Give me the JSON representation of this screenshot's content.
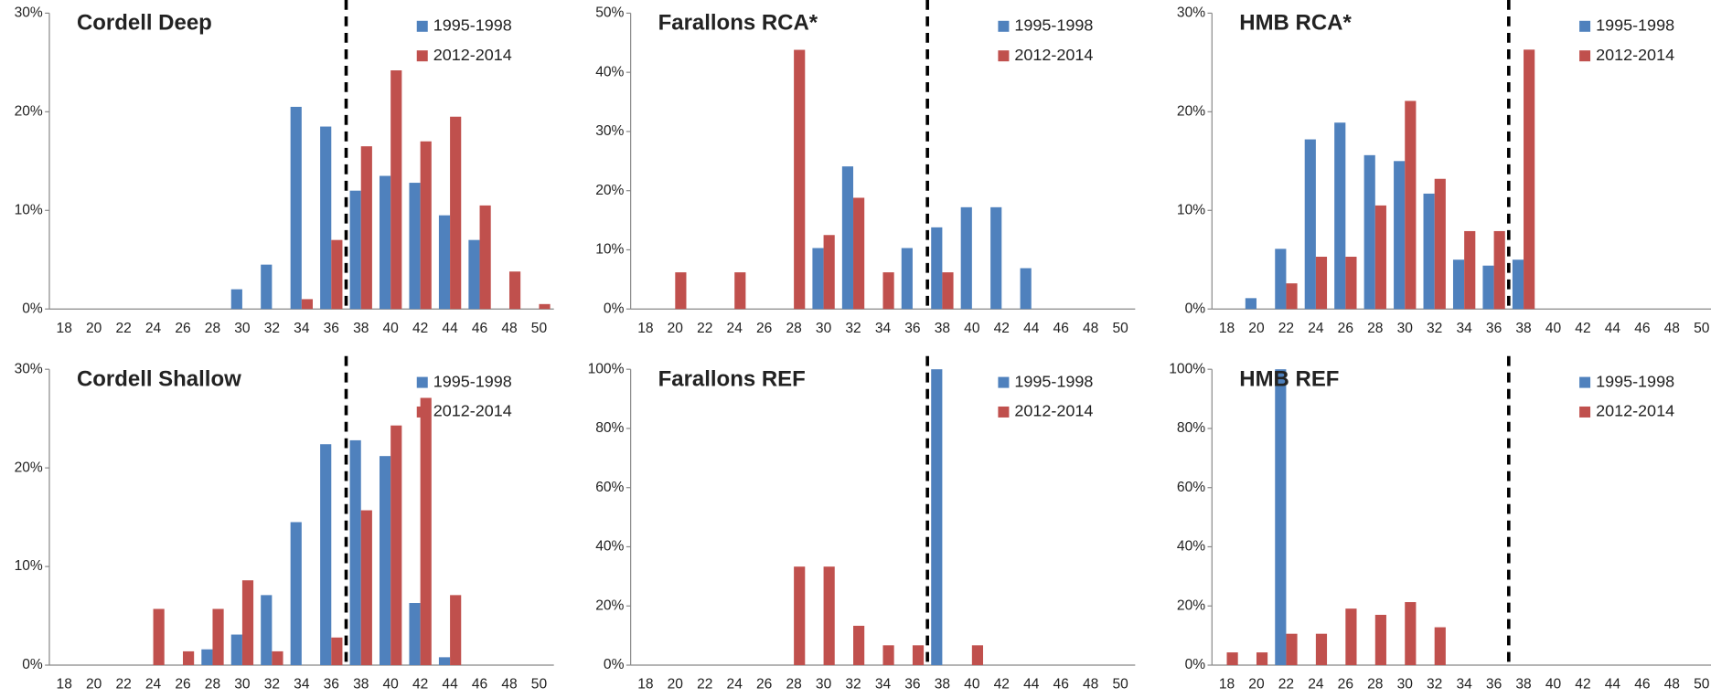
{
  "chart_data": [
    {
      "type": "bar",
      "title": "Cordell Deep",
      "categories": [
        "18",
        "20",
        "22",
        "24",
        "26",
        "28",
        "30",
        "32",
        "34",
        "36",
        "38",
        "40",
        "42",
        "44",
        "46",
        "48",
        "50"
      ],
      "series": [
        {
          "name": "1995-1998",
          "color": "#4f81bd",
          "values": [
            0,
            0,
            0,
            0,
            0,
            0,
            2,
            4.5,
            20.5,
            18.5,
            12,
            13.5,
            12.8,
            9.5,
            7,
            0,
            0
          ]
        },
        {
          "name": "2012-2014",
          "color": "#c0504d",
          "values": [
            0,
            0,
            0,
            0,
            0,
            0,
            0,
            0,
            1,
            7,
            16.5,
            24.2,
            17,
            19.5,
            10.5,
            3.8,
            0.5
          ]
        }
      ],
      "ylim": [
        0,
        30
      ],
      "yticks": [
        {
          "value": 0,
          "label": "0%"
        },
        {
          "value": 10,
          "label": "10%"
        },
        {
          "value": 20,
          "label": "20%"
        },
        {
          "value": 30,
          "label": "30%"
        }
      ],
      "reference_x": 37
    },
    {
      "type": "bar",
      "title": "Farallons RCA*",
      "categories": [
        "18",
        "20",
        "22",
        "24",
        "26",
        "28",
        "30",
        "32",
        "34",
        "36",
        "38",
        "40",
        "42",
        "44",
        "46",
        "48",
        "50"
      ],
      "series": [
        {
          "name": "1995-1998",
          "color": "#4f81bd",
          "values": [
            0,
            0,
            0,
            0,
            0,
            0,
            10.3,
            24.1,
            0,
            10.3,
            13.8,
            17.2,
            17.2,
            6.9,
            0,
            0,
            0
          ]
        },
        {
          "name": "2012-2014",
          "color": "#c0504d",
          "values": [
            0,
            6.2,
            0,
            6.2,
            0,
            43.8,
            12.5,
            18.8,
            6.2,
            0,
            6.2,
            0,
            0,
            0,
            0,
            0,
            0
          ]
        }
      ],
      "ylim": [
        0,
        50
      ],
      "yticks": [
        {
          "value": 0,
          "label": "0%"
        },
        {
          "value": 10,
          "label": "10%"
        },
        {
          "value": 20,
          "label": "20%"
        },
        {
          "value": 30,
          "label": "30%"
        },
        {
          "value": 40,
          "label": "40%"
        },
        {
          "value": 50,
          "label": "50%"
        }
      ],
      "reference_x": 37
    },
    {
      "type": "bar",
      "title": "HMB RCA*",
      "categories": [
        "18",
        "20",
        "22",
        "24",
        "26",
        "28",
        "30",
        "32",
        "34",
        "36",
        "38",
        "40",
        "42",
        "44",
        "46",
        "48",
        "50"
      ],
      "series": [
        {
          "name": "1995-1998",
          "color": "#4f81bd",
          "values": [
            0,
            1.1,
            6.1,
            17.2,
            18.9,
            15.6,
            15,
            11.7,
            5,
            4.4,
            5,
            0,
            0,
            0,
            0,
            0,
            0
          ]
        },
        {
          "name": "2012-2014",
          "color": "#c0504d",
          "values": [
            0,
            0,
            2.6,
            5.3,
            5.3,
            10.5,
            21.1,
            13.2,
            7.9,
            7.9,
            26.3,
            0,
            0,
            0,
            0,
            0,
            0
          ]
        }
      ],
      "ylim": [
        0,
        30
      ],
      "yticks": [
        {
          "value": 0,
          "label": "0%"
        },
        {
          "value": 10,
          "label": "10%"
        },
        {
          "value": 20,
          "label": "20%"
        },
        {
          "value": 30,
          "label": "30%"
        }
      ],
      "reference_x": 37
    },
    {
      "type": "bar",
      "title": "Cordell Shallow",
      "categories": [
        "18",
        "20",
        "22",
        "24",
        "26",
        "28",
        "30",
        "32",
        "34",
        "36",
        "38",
        "40",
        "42",
        "44",
        "46",
        "48",
        "50"
      ],
      "series": [
        {
          "name": "1995-1998",
          "color": "#4f81bd",
          "values": [
            0,
            0,
            0,
            0,
            0,
            1.6,
            3.1,
            7.1,
            14.5,
            22.4,
            22.8,
            21.2,
            6.3,
            0.8,
            0,
            0,
            0
          ]
        },
        {
          "name": "2012-2014",
          "color": "#c0504d",
          "values": [
            0,
            0,
            0,
            5.7,
            1.4,
            5.7,
            8.6,
            1.4,
            0,
            2.8,
            15.7,
            24.3,
            27.1,
            7.1,
            0,
            0,
            0
          ]
        }
      ],
      "ylim": [
        0,
        30
      ],
      "yticks": [
        {
          "value": 0,
          "label": "0%"
        },
        {
          "value": 10,
          "label": "10%"
        },
        {
          "value": 20,
          "label": "20%"
        },
        {
          "value": 30,
          "label": "30%"
        }
      ],
      "reference_x": 37
    },
    {
      "type": "bar",
      "title": "Farallons REF",
      "categories": [
        "18",
        "20",
        "22",
        "24",
        "26",
        "28",
        "30",
        "32",
        "34",
        "36",
        "38",
        "40",
        "42",
        "44",
        "46",
        "48",
        "50"
      ],
      "series": [
        {
          "name": "1995-1998",
          "color": "#4f81bd",
          "values": [
            0,
            0,
            0,
            0,
            0,
            0,
            0,
            0,
            0,
            0,
            100,
            0,
            0,
            0,
            0,
            0,
            0
          ]
        },
        {
          "name": "2012-2014",
          "color": "#c0504d",
          "values": [
            0,
            0,
            0,
            0,
            0,
            33.3,
            33.3,
            13.3,
            6.7,
            6.7,
            0,
            6.7,
            0,
            0,
            0,
            0,
            0
          ]
        }
      ],
      "ylim": [
        0,
        100
      ],
      "yticks": [
        {
          "value": 0,
          "label": "0%"
        },
        {
          "value": 20,
          "label": "20%"
        },
        {
          "value": 40,
          "label": "40%"
        },
        {
          "value": 60,
          "label": "60%"
        },
        {
          "value": 80,
          "label": "80%"
        },
        {
          "value": 100,
          "label": "100%"
        }
      ],
      "reference_x": 37
    },
    {
      "type": "bar",
      "title": "HMB REF",
      "categories": [
        "18",
        "20",
        "22",
        "24",
        "26",
        "28",
        "30",
        "32",
        "34",
        "36",
        "38",
        "40",
        "42",
        "44",
        "46",
        "48",
        "50"
      ],
      "series": [
        {
          "name": "1995-1998",
          "color": "#4f81bd",
          "values": [
            0,
            0,
            100,
            0,
            0,
            0,
            0,
            0,
            0,
            0,
            0,
            0,
            0,
            0,
            0,
            0,
            0
          ]
        },
        {
          "name": "2012-2014",
          "color": "#c0504d",
          "values": [
            4.3,
            4.3,
            10.6,
            10.6,
            19.1,
            17,
            21.3,
            12.8,
            0,
            0,
            0,
            0,
            0,
            0,
            0,
            0,
            0
          ]
        }
      ],
      "ylim": [
        0,
        100
      ],
      "yticks": [
        {
          "value": 0,
          "label": "0%"
        },
        {
          "value": 20,
          "label": "20%"
        },
        {
          "value": 40,
          "label": "40%"
        },
        {
          "value": 60,
          "label": "60%"
        },
        {
          "value": 80,
          "label": "80%"
        },
        {
          "value": 100,
          "label": "100%"
        }
      ],
      "reference_x": 37
    }
  ]
}
